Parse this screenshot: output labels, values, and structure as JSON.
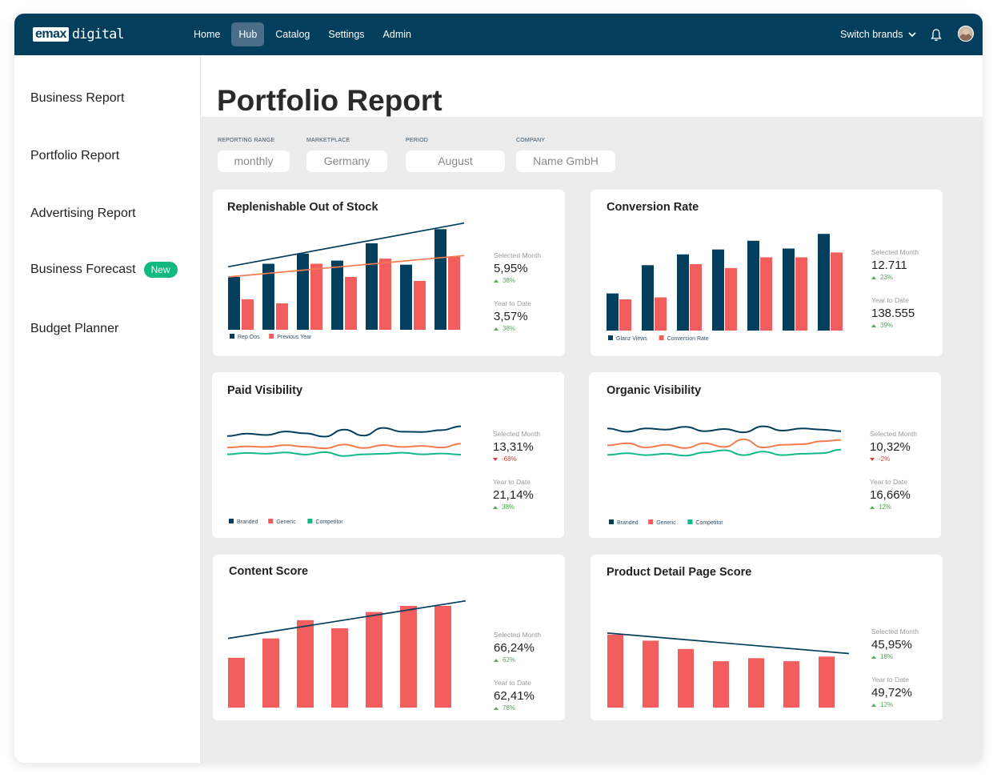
{
  "brand": {
    "logo_box": "emax",
    "logo_text": "digital"
  },
  "nav": {
    "items": [
      "Home",
      "Hub",
      "Catalog",
      "Settings",
      "Admin"
    ],
    "active": "Hub",
    "switch_label": "Switch brands"
  },
  "sidebar": {
    "items": [
      {
        "label": "Business Report"
      },
      {
        "label": "Portfolio Report"
      },
      {
        "label": "Advertising Report"
      },
      {
        "label": "Business Forecast",
        "badge": "New"
      },
      {
        "label": "Budget Planner"
      }
    ]
  },
  "page": {
    "title": "Portfolio Report"
  },
  "filters": [
    {
      "label": "REPORTING RANGE",
      "value": "monthly"
    },
    {
      "label": "MARKETPLACE",
      "value": "Germany"
    },
    {
      "label": "PERIOD",
      "value": "August"
    },
    {
      "label": "COMPANY",
      "value": "Name GmbH"
    }
  ],
  "colors": {
    "navy": "#033f5c",
    "coral": "#f25e5e",
    "orange": "#f47b4f",
    "green": "#13b98a",
    "up": "#4caf50",
    "down": "#e53935"
  },
  "cards": [
    {
      "title": "Replenishable Out of Stock",
      "stats": [
        {
          "label": "Selected Month",
          "value": "5,95%",
          "change": "38%",
          "dir": "up"
        },
        {
          "label": "Year to Date",
          "value": "3,57%",
          "change": "38%",
          "dir": "up"
        }
      ],
      "legend": [
        "Rep Oos",
        "Previous Year"
      ]
    },
    {
      "title": "Conversion Rate",
      "stats": [
        {
          "label": "Selected Month",
          "value": "12.711",
          "change": "23%",
          "dir": "up"
        },
        {
          "label": "Year to Date",
          "value": "138.555",
          "change": "39%",
          "dir": "up"
        }
      ],
      "legend": [
        "Glanz Views",
        "Conversion Rate"
      ]
    },
    {
      "title": "Paid Visibility",
      "stats": [
        {
          "label": "Selected Month",
          "value": "13,31%",
          "change": "-68%",
          "dir": "down"
        },
        {
          "label": "Year to Date",
          "value": "21,14%",
          "change": "38%",
          "dir": "up"
        }
      ],
      "legend": [
        "Branded",
        "Generic",
        "Competitor"
      ]
    },
    {
      "title": "Organic Visibility",
      "stats": [
        {
          "label": "Selected Month",
          "value": "10,32%",
          "change": "-2%",
          "dir": "down"
        },
        {
          "label": "Year to Date",
          "value": "16,66%",
          "change": "12%",
          "dir": "up"
        }
      ],
      "legend": [
        "Branded",
        "Generic",
        "Competitor"
      ]
    },
    {
      "title": "Content Score",
      "stats": [
        {
          "label": "Selected Month",
          "value": "66,24%",
          "change": "62%",
          "dir": "up"
        },
        {
          "label": "Year to Date",
          "value": "62,41%",
          "change": "78%",
          "dir": "up"
        }
      ],
      "legend": []
    },
    {
      "title": "Product Detail Page Score",
      "stats": [
        {
          "label": "Selected Month",
          "value": "45,95%",
          "change": "18%",
          "dir": "up"
        },
        {
          "label": "Year to Date",
          "value": "49,72%",
          "change": "12%",
          "dir": "up"
        }
      ],
      "legend": []
    }
  ],
  "chart_data": [
    {
      "type": "bar",
      "chart": "Replenishable Out of Stock",
      "series": [
        {
          "name": "Rep Oos",
          "values": [
            52,
            65,
            75,
            68,
            85,
            64,
            99
          ],
          "trend": [
            62,
            105
          ]
        },
        {
          "name": "Previous Year",
          "values": [
            30,
            26,
            65,
            52,
            70,
            48,
            72
          ],
          "trend": [
            52,
            73
          ]
        }
      ],
      "ylim": [
        0,
        100
      ]
    },
    {
      "type": "bar",
      "chart": "Conversion Rate",
      "series": [
        {
          "name": "Glanz Views",
          "values": [
            38,
            67,
            78,
            83,
            92,
            84,
            99
          ]
        },
        {
          "name": "Conversion Rate",
          "values": [
            32,
            34,
            68,
            64,
            75,
            75,
            80
          ]
        }
      ],
      "ylim": [
        0,
        100
      ]
    },
    {
      "type": "line",
      "chart": "Paid Visibility",
      "series": [
        {
          "name": "Branded",
          "values": [
            24,
            33,
            28,
            41,
            34,
            22,
            48,
            26,
            54,
            40,
            39,
            46,
            60
          ]
        },
        {
          "name": "Generic",
          "values": [
            -18,
            -14,
            -16,
            -9,
            -15,
            -21,
            -7,
            -20,
            -9,
            -16,
            -12,
            -18,
            -4
          ]
        },
        {
          "name": "Competitor",
          "values": [
            -43,
            -38,
            -41,
            -36,
            -44,
            -35,
            -49,
            -43,
            -41,
            -37,
            -43,
            -40,
            -44
          ]
        }
      ],
      "ylim": [
        -60,
        70
      ]
    },
    {
      "type": "line",
      "chart": "Organic Visibility",
      "series": [
        {
          "name": "Branded",
          "values": [
            52,
            40,
            52,
            48,
            58,
            42,
            50,
            38,
            60,
            44,
            52,
            48,
            42
          ]
        },
        {
          "name": "Generic",
          "values": [
            -10,
            -2,
            -18,
            -8,
            -20,
            -2,
            -16,
            12,
            -18,
            -8,
            -6,
            5,
            10
          ]
        },
        {
          "name": "Competitor",
          "values": [
            -45,
            -39,
            -46,
            -41,
            -48,
            -36,
            -28,
            -46,
            -33,
            -46,
            -41,
            -39,
            -26
          ]
        }
      ],
      "ylim": [
        -60,
        70
      ]
    },
    {
      "type": "bar",
      "chart": "Content Score",
      "series": [
        {
          "name": "",
          "values": [
            49,
            68,
            86,
            78,
            94,
            100,
            100
          ],
          "trend": [
            68,
            105
          ]
        }
      ],
      "ylim": [
        0,
        100
      ]
    },
    {
      "type": "bar",
      "chart": "Product Detail Page Score",
      "series": [
        {
          "name": "",
          "values": [
            96,
            88,
            77,
            61,
            65,
            61,
            67
          ],
          "trend": [
            98,
            71
          ]
        }
      ],
      "ylim": [
        0,
        100
      ]
    }
  ]
}
